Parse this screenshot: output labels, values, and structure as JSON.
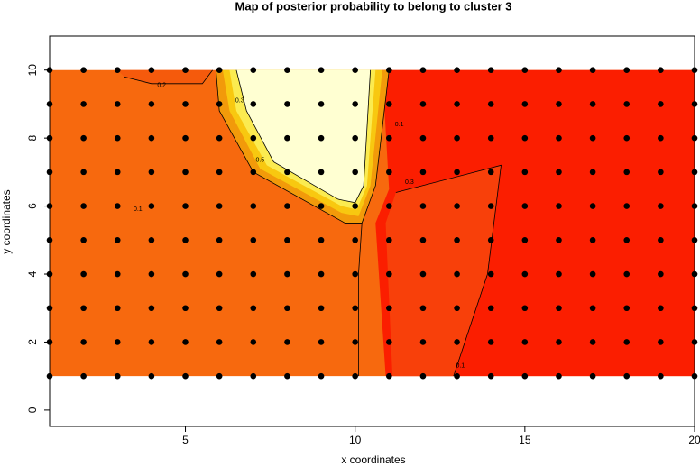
{
  "chart_data": {
    "type": "scatter",
    "title": "Map of posterior probability to belong to cluster  3",
    "x_label": "x coordinates",
    "y_label": "y coordinates",
    "xlim": [
      1,
      20
    ],
    "ylim": [
      -0.48,
      11.0
    ],
    "xticks": [
      5,
      10,
      15,
      20
    ],
    "yticks": [
      0,
      2,
      4,
      6,
      8,
      10
    ],
    "color": "#000000",
    "contour_labels": [
      "0.2",
      "0.1",
      "0.3",
      "0.5",
      "0.1",
      "0.3",
      "0.1"
    ],
    "x": [
      1,
      2,
      3,
      4,
      5,
      6,
      7,
      8,
      9,
      10,
      11,
      12,
      13,
      14,
      15,
      16,
      17,
      18,
      19,
      20,
      1,
      2,
      3,
      4,
      5,
      6,
      7,
      8,
      9,
      10,
      11,
      12,
      13,
      14,
      15,
      16,
      17,
      18,
      19,
      20,
      1,
      2,
      3,
      4,
      5,
      6,
      7,
      8,
      9,
      10,
      11,
      12,
      13,
      14,
      15,
      16,
      17,
      18,
      19,
      20,
      1,
      2,
      3,
      4,
      5,
      6,
      7,
      8,
      9,
      10,
      11,
      12,
      13,
      14,
      15,
      16,
      17,
      18,
      19,
      20,
      1,
      2,
      3,
      4,
      5,
      6,
      7,
      8,
      9,
      10,
      11,
      12,
      13,
      14,
      15,
      16,
      17,
      18,
      19,
      20,
      1,
      2,
      3,
      4,
      5,
      6,
      7,
      8,
      9,
      10,
      11,
      12,
      13,
      14,
      15,
      16,
      17,
      18,
      19,
      20,
      1,
      2,
      3,
      4,
      5,
      6,
      7,
      8,
      9,
      10,
      11,
      12,
      13,
      14,
      15,
      16,
      17,
      18,
      19,
      20,
      1,
      2,
      3,
      4,
      5,
      6,
      7,
      8,
      9,
      10,
      11,
      12,
      13,
      14,
      15,
      16,
      17,
      18,
      19,
      20,
      1,
      2,
      3,
      4,
      5,
      6,
      7,
      8,
      9,
      10,
      11,
      12,
      13,
      14,
      15,
      16,
      17,
      18,
      19,
      20,
      1,
      2,
      3,
      4,
      5,
      6,
      7,
      8,
      9,
      10,
      11,
      12,
      13,
      14,
      15,
      16,
      17,
      18,
      19,
      20
    ],
    "y": [
      1,
      1,
      1,
      1,
      1,
      1,
      1,
      1,
      1,
      1,
      1,
      1,
      1,
      1,
      1,
      1,
      1,
      1,
      1,
      1,
      2,
      2,
      2,
      2,
      2,
      2,
      2,
      2,
      2,
      2,
      2,
      2,
      2,
      2,
      2,
      2,
      2,
      2,
      2,
      2,
      3,
      3,
      3,
      3,
      3,
      3,
      3,
      3,
      3,
      3,
      3,
      3,
      3,
      3,
      3,
      3,
      3,
      3,
      3,
      3,
      4,
      4,
      4,
      4,
      4,
      4,
      4,
      4,
      4,
      4,
      4,
      4,
      4,
      4,
      4,
      4,
      4,
      4,
      4,
      4,
      5,
      5,
      5,
      5,
      5,
      5,
      5,
      5,
      5,
      5,
      5,
      5,
      5,
      5,
      5,
      5,
      5,
      5,
      5,
      5,
      6,
      6,
      6,
      6,
      6,
      6,
      6,
      6,
      6,
      6,
      6,
      6,
      6,
      6,
      6,
      6,
      6,
      6,
      6,
      6,
      7,
      7,
      7,
      7,
      7,
      7,
      7,
      7,
      7,
      7,
      7,
      7,
      7,
      7,
      7,
      7,
      7,
      7,
      7,
      7,
      8,
      8,
      8,
      8,
      8,
      8,
      8,
      8,
      8,
      8,
      8,
      8,
      8,
      8,
      8,
      8,
      8,
      8,
      8,
      8,
      9,
      9,
      9,
      9,
      9,
      9,
      9,
      9,
      9,
      9,
      9,
      9,
      9,
      9,
      9,
      9,
      9,
      9,
      9,
      9,
      10,
      10,
      10,
      10,
      10,
      10,
      10,
      10,
      10,
      10,
      10,
      10,
      10,
      10,
      10,
      10,
      10,
      10,
      10,
      10
    ]
  }
}
